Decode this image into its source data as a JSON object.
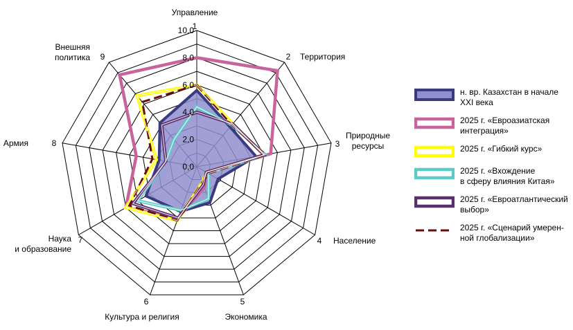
{
  "chart_data": {
    "type": "radar",
    "r_ticks": [
      "0,0",
      "2,0",
      "4,0",
      "6,0",
      "8,0",
      "10,0"
    ],
    "rlim": [
      0,
      10
    ],
    "axes": [
      {
        "num": "1",
        "label": "Управление"
      },
      {
        "num": "2",
        "label": "Территория"
      },
      {
        "num": "3",
        "label": "Природные\nресурсы"
      },
      {
        "num": "4",
        "label": "Население"
      },
      {
        "num": "5",
        "label": "Экономика"
      },
      {
        "num": "6",
        "label": "Культура и религия"
      },
      {
        "num": "7",
        "label": "Наука\nи образование"
      },
      {
        "num": "8",
        "label": "Армия"
      },
      {
        "num": "9",
        "label": "Внешняя\nполитика"
      }
    ],
    "series": [
      {
        "name": "н. вр. Казахстан в начале XXI века",
        "color": "#3a3a80",
        "fill": "#8f8fcf",
        "style": "filled",
        "values": [
          5.6,
          3.8,
          4.4,
          1.8,
          2.8,
          3.5,
          4.3,
          2.8,
          4.2
        ]
      },
      {
        "name": "2025 г. «Евроазиатская интеграция»",
        "color": "#c9639c",
        "style": "thick",
        "values": [
          8.0,
          9.2,
          5.5,
          0.9,
          1.6,
          4.0,
          6.0,
          4.5,
          8.8
        ]
      },
      {
        "name": "2025 г. «Гибкий курс»",
        "color": "#ffff00",
        "style": "thick",
        "values": [
          6.0,
          4.1,
          5.0,
          0.8,
          1.2,
          4.2,
          6.0,
          3.0,
          6.8
        ]
      },
      {
        "name": "2025 г. «Вхождение в сферу влияния Китая»",
        "color": "#5ccac6",
        "style": "thick",
        "values": [
          4.4,
          4.0,
          5.1,
          1.0,
          2.5,
          3.4,
          5.0,
          2.3,
          2.6
        ]
      },
      {
        "name": "2025 г. «Евроатлантический выбор»",
        "color": "#5a2f6e",
        "style": "thick",
        "values": [
          4.0,
          4.1,
          5.0,
          0.8,
          1.4,
          4.0,
          5.4,
          2.3,
          4.0
        ]
      },
      {
        "name": "2025 г. «Сценарий умерен- ной глобализации»",
        "color": "#6b0a0a",
        "style": "dashed",
        "values": [
          6.0,
          4.0,
          5.1,
          1.0,
          1.2,
          4.2,
          5.7,
          3.3,
          6.2
        ]
      }
    ],
    "legend_position": "right"
  },
  "legend_labels": [
    "н. вр. Казахстан в начале\nXXI века",
    "2025 г. «Евроазиатская\nинтеграция»",
    "2025 г. «Гибкий курс»",
    "2025 г. «Вхождение\nв сферу влияния Китая»",
    "2025 г. «Евроатлантический\nвыбор»",
    "2025 г. «Сценарий умерен-\nной глобализации»"
  ]
}
